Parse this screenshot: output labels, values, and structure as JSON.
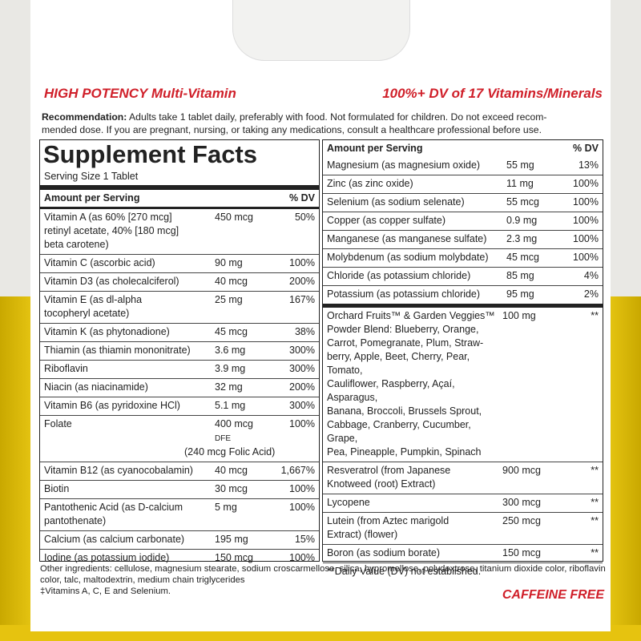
{
  "header": {
    "left_bold": "HIGH POTENCY",
    "left_rest": "Multi-Vitamin",
    "right_bold": "100%+ DV",
    "right_rest": "of 17 Vitamins/Minerals"
  },
  "recommendation": {
    "label": "Recommendation:",
    "lines": [
      "Adults take 1 tablet daily, preferably with food. Not formulated for children. Do not exceed recom-",
      "mended dose. If you are pregnant, nursing, or taking any medications, consult a healthcare professional before use."
    ]
  },
  "facts": {
    "title": "Supplement Facts",
    "serving_size": "Serving Size 1 Tablet",
    "col_amount": "Amount per Serving",
    "col_dv": "% DV",
    "vitamins": [
      {
        "name": [
          "Vitamin A (as 60% [270 mcg]",
          "retinyl acetate, 40% [180 mcg]",
          "beta carotene)"
        ],
        "amount": "450 mcg",
        "dv": "50%"
      },
      {
        "name": [
          "Vitamin C (ascorbic acid)"
        ],
        "amount": "90 mg",
        "dv": "100%"
      },
      {
        "name": [
          "Vitamin D3 (as cholecalciferol)"
        ],
        "amount": "40 mcg",
        "dv": "200%"
      },
      {
        "name": [
          "Vitamin E (as dl-alpha",
          "tocopheryl acetate)"
        ],
        "amount": "25 mg",
        "dv": "167%"
      },
      {
        "name": [
          "Vitamin K (as phytonadione)"
        ],
        "amount": "45 mcg",
        "dv": "38%"
      },
      {
        "name": [
          "Thiamin (as thiamin mononitrate)"
        ],
        "amount": "3.6 mg",
        "dv": "300%"
      },
      {
        "name": [
          "Riboflavin"
        ],
        "amount": "3.9 mg",
        "dv": "300%"
      },
      {
        "name": [
          "Niacin (as niacinamide)"
        ],
        "amount": "32 mg",
        "dv": "200%"
      },
      {
        "name": [
          "Vitamin B6 (as pyridoxine HCl)"
        ],
        "amount": "5.1 mg",
        "dv": "300%"
      },
      {
        "name": [
          "Folate"
        ],
        "amount": "400 mcg",
        "amount_unit": "DFE",
        "note": "(240 mcg Folic Acid)",
        "dv": "100%"
      },
      {
        "name": [
          "Vitamin B12 (as cyanocobalamin)"
        ],
        "amount": "40 mcg",
        "dv": "1,667%"
      },
      {
        "name": [
          "Biotin"
        ],
        "amount": "30 mcg",
        "dv": "100%"
      },
      {
        "name": [
          "Pantothenic Acid (as D-calcium",
          "pantothenate)"
        ],
        "amount": "5 mg",
        "dv": "100%"
      },
      {
        "name": [
          "Calcium (as calcium carbonate)"
        ],
        "amount": "195 mg",
        "dv": "15%"
      },
      {
        "name": [
          "Iodine (as potassium iodide)"
        ],
        "amount": "150 mcg",
        "dv": "100%"
      }
    ],
    "right_col_amount": "Amount per Serving",
    "right_col_dv": "% DV",
    "minerals": [
      {
        "name": [
          "Magnesium (as magnesium oxide)"
        ],
        "amount": "55 mg",
        "dv": "13%"
      },
      {
        "name": [
          "Zinc (as zinc oxide)"
        ],
        "amount": "11 mg",
        "dv": "100%"
      },
      {
        "name": [
          "Selenium (as sodium selenate)"
        ],
        "amount": "55 mcg",
        "dv": "100%"
      },
      {
        "name": [
          "Copper (as copper sulfate)"
        ],
        "amount": "0.9 mg",
        "dv": "100%"
      },
      {
        "name": [
          "Manganese (as manganese sulfate)"
        ],
        "amount": "2.3 mg",
        "dv": "100%"
      },
      {
        "name": [
          "Molybdenum (as sodium molybdate)"
        ],
        "amount": "45 mcg",
        "dv": "100%"
      },
      {
        "name": [
          "Chloride (as potassium chloride)"
        ],
        "amount": "85 mg",
        "dv": "4%"
      },
      {
        "name": [
          "Potassium (as potassium chloride)"
        ],
        "amount": "95 mg",
        "dv": "2%"
      }
    ],
    "blends": [
      {
        "name": [
          "Orchard Fruits™ & Garden Veggies™",
          "Powder Blend: Blueberry, Orange,",
          "Carrot, Pomegranate, Plum, Straw-",
          "berry, Apple, Beet, Cherry, Pear, Tomato,",
          "Cauliflower, Raspberry, Açaí, Asparagus,",
          "Banana, Broccoli, Brussels Sprout,",
          "Cabbage, Cranberry, Cucumber, Grape,",
          "Pea, Pineapple, Pumpkin, Spinach"
        ],
        "amount": "100 mg",
        "dv": "**"
      },
      {
        "name": [
          "Resveratrol (from Japanese",
          "Knotweed (root) Extract)"
        ],
        "amount": "900 mcg",
        "dv": "**"
      },
      {
        "name": [
          "Lycopene"
        ],
        "amount": "300 mcg",
        "dv": "**"
      },
      {
        "name": [
          "Lutein (from Aztec marigold",
          "Extract) (flower)"
        ],
        "amount": "250 mcg",
        "dv": "**"
      },
      {
        "name": [
          "Boron (as sodium borate)"
        ],
        "amount": "150 mcg",
        "dv": "**"
      }
    ],
    "footnote": "**Daily Value (DV) not established."
  },
  "other_ingredients": "Other ingredients: cellulose, magnesium stearate, sodium croscarmellose, silica, hypromellose, polydextrose, titanium dioxide color, riboflavin color, talc, maltodextrin, medium chain triglycerides",
  "dagger_note": "‡Vitamins A, C, E and Selenium.",
  "caffeine": "CAFFEINE FREE"
}
